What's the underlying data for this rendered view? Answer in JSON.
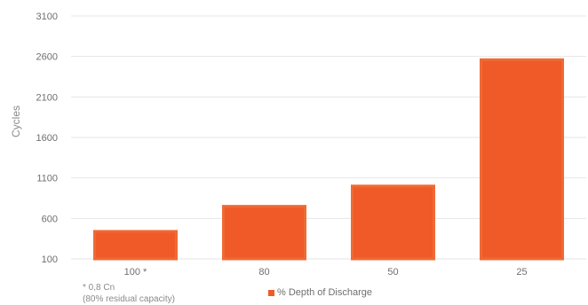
{
  "chart_data": {
    "type": "bar",
    "categories": [
      "100 *",
      "80",
      "50",
      "25"
    ],
    "values": [
      440,
      750,
      1000,
      2560
    ],
    "ylabel": "Cycles",
    "xlabel": "",
    "ylim": [
      100,
      3100
    ],
    "yticks": [
      100,
      600,
      1100,
      1600,
      2100,
      2600,
      3100
    ],
    "grid": true,
    "legend_position": "bottom",
    "series": [
      {
        "name": "% Depth of Discharge",
        "values": [
          440,
          750,
          1000,
          2560
        ]
      }
    ]
  },
  "colors": {
    "bar": "#f05a28",
    "bar_inner": "#ef6a35",
    "grid": "#e6e6e6"
  },
  "footnote": {
    "line1": "* 0,8 Cn",
    "line2": "(80% residual capacity)"
  }
}
